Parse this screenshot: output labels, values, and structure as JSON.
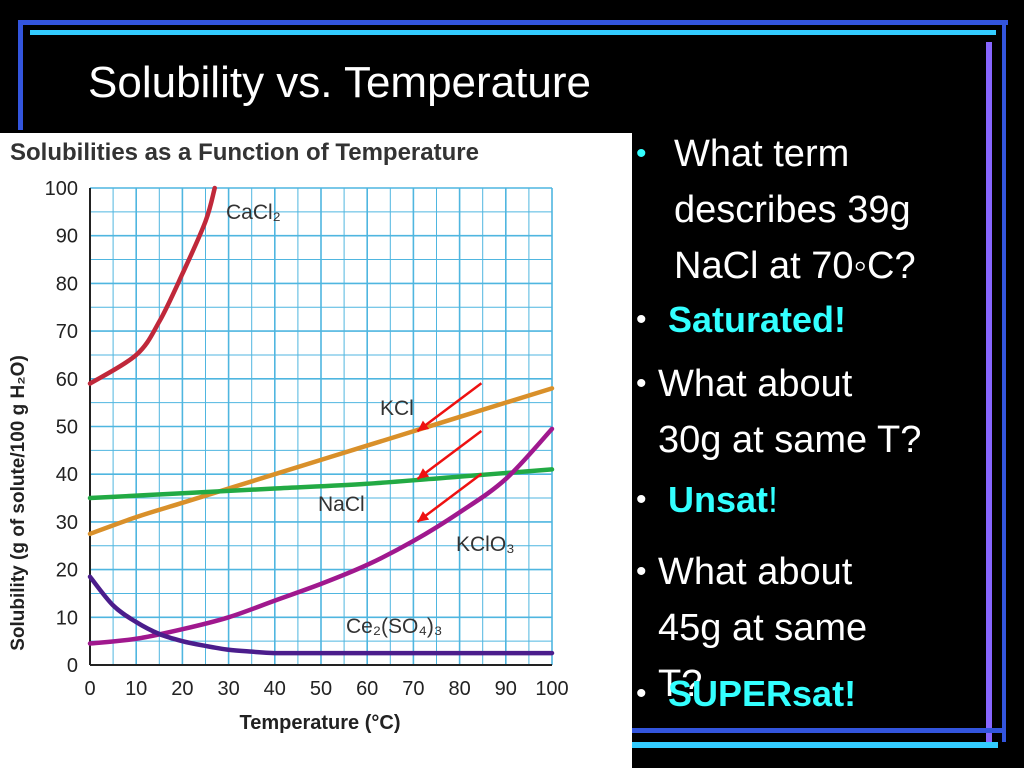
{
  "slide": {
    "title": "Solubility vs. Temperature"
  },
  "colors": {
    "background": "#000000",
    "frame_blue": "#3355dd",
    "frame_cyan": "#33ccff",
    "frame_violet": "#8866ff",
    "answer": "#33ffff"
  },
  "bullets": [
    {
      "lines": [
        "What term",
        "describes 39g",
        "NaCl at 70◦C?"
      ]
    },
    {
      "answer": "Saturated!"
    },
    {
      "lines": [
        "What about",
        "30g at same T?"
      ]
    },
    {
      "answer": "Unsat",
      "suffix": "!"
    },
    {
      "lines": [
        "What about",
        "45g at same",
        "T?"
      ]
    },
    {
      "answer": "SUPERsat!"
    }
  ],
  "chart_data": {
    "type": "line",
    "title": "Solubilities as a Function of Temperature",
    "xlabel": "Temperature (°C)",
    "ylabel": "Solubility (g of solute/100 g H₂O)",
    "xlim": [
      0,
      100
    ],
    "ylim": [
      0,
      100
    ],
    "xticks": [
      0,
      10,
      20,
      30,
      40,
      50,
      60,
      70,
      80,
      90,
      100
    ],
    "yticks": [
      0,
      10,
      20,
      30,
      40,
      50,
      60,
      70,
      80,
      90,
      100
    ],
    "grid": true,
    "series": [
      {
        "name": "CaCl₂",
        "color": "#c0283a",
        "x": [
          0,
          10,
          15,
          20,
          25,
          27
        ],
        "y": [
          59,
          65,
          72,
          82,
          93,
          100
        ]
      },
      {
        "name": "KCl",
        "color": "#d9902a",
        "x": [
          0,
          10,
          20,
          30,
          40,
          50,
          60,
          70,
          80,
          90,
          100
        ],
        "y": [
          27.5,
          31,
          34,
          37,
          40,
          43,
          46,
          49,
          52,
          55,
          58
        ]
      },
      {
        "name": "NaCl",
        "color": "#22aa44",
        "x": [
          0,
          20,
          40,
          60,
          80,
          100
        ],
        "y": [
          35,
          36,
          37,
          38,
          39.5,
          41
        ]
      },
      {
        "name": "KClO₃",
        "color": "#a0188e",
        "x": [
          0,
          10,
          20,
          30,
          40,
          50,
          60,
          70,
          80,
          90,
          100
        ],
        "y": [
          4.5,
          5.5,
          7.5,
          10,
          13.5,
          17,
          21,
          26,
          32,
          39,
          49.5
        ]
      },
      {
        "name": "Ce₂(SO₄)₃",
        "color": "#4b1d8c",
        "x": [
          0,
          5,
          10,
          15,
          20,
          25,
          30,
          35,
          40,
          50,
          60,
          70,
          80,
          90,
          100
        ],
        "y": [
          18.5,
          12.5,
          9,
          6.5,
          5,
          4,
          3.2,
          2.8,
          2.5,
          2.5,
          2.5,
          2.5,
          2.5,
          2.5,
          2.5
        ]
      }
    ],
    "annotations": [
      {
        "type": "arrow",
        "color": "#ee1111",
        "points_to": [
          70,
          49
        ]
      },
      {
        "type": "arrow",
        "color": "#ee1111",
        "points_to": [
          70,
          39
        ]
      },
      {
        "type": "arrow",
        "color": "#ee1111",
        "points_to": [
          70,
          30
        ]
      }
    ]
  }
}
